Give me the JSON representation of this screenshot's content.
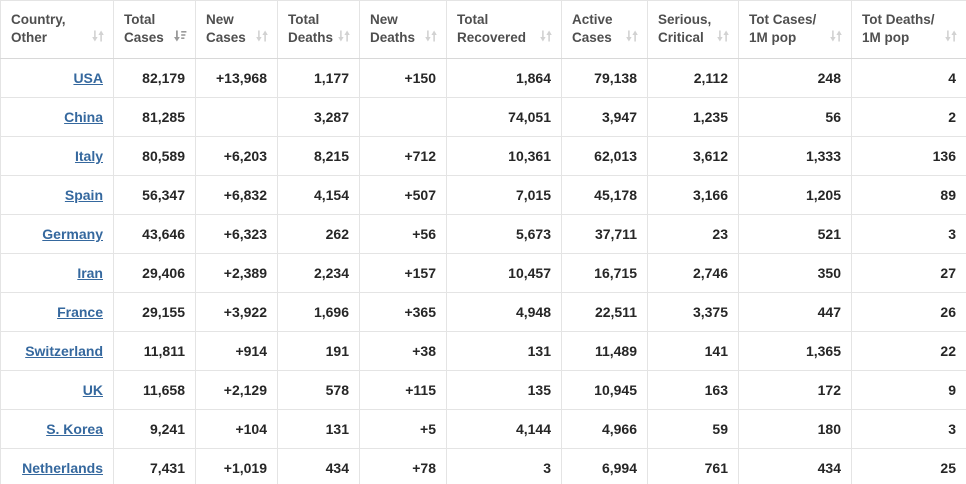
{
  "table": {
    "columns": [
      {
        "key": "country",
        "label": "Country,\nOther",
        "sort": "none"
      },
      {
        "key": "total_cases",
        "label": "Total\nCases",
        "sort": "desc"
      },
      {
        "key": "new_cases",
        "label": "New\nCases",
        "sort": "none"
      },
      {
        "key": "total_deaths",
        "label": "Total\nDeaths",
        "sort": "none"
      },
      {
        "key": "new_deaths",
        "label": "New\nDeaths",
        "sort": "none"
      },
      {
        "key": "total_recovered",
        "label": "Total\nRecovered",
        "sort": "none"
      },
      {
        "key": "active_cases",
        "label": "Active\nCases",
        "sort": "none"
      },
      {
        "key": "serious_critical",
        "label": "Serious,\nCritical",
        "sort": "none"
      },
      {
        "key": "cases_per_1m",
        "label": "Tot Cases/\n1M pop",
        "sort": "none"
      },
      {
        "key": "deaths_per_1m",
        "label": "Tot Deaths/\n1M pop",
        "sort": "none"
      }
    ],
    "rows": [
      {
        "country": "USA",
        "total_cases": "82,179",
        "new_cases": "+13,968",
        "total_deaths": "1,177",
        "new_deaths": "+150",
        "total_recovered": "1,864",
        "active_cases": "79,138",
        "serious_critical": "2,112",
        "cases_per_1m": "248",
        "deaths_per_1m": "4"
      },
      {
        "country": "China",
        "total_cases": "81,285",
        "new_cases": "",
        "total_deaths": "3,287",
        "new_deaths": "",
        "total_recovered": "74,051",
        "active_cases": "3,947",
        "serious_critical": "1,235",
        "cases_per_1m": "56",
        "deaths_per_1m": "2"
      },
      {
        "country": "Italy",
        "total_cases": "80,589",
        "new_cases": "+6,203",
        "total_deaths": "8,215",
        "new_deaths": "+712",
        "total_recovered": "10,361",
        "active_cases": "62,013",
        "serious_critical": "3,612",
        "cases_per_1m": "1,333",
        "deaths_per_1m": "136"
      },
      {
        "country": "Spain",
        "total_cases": "56,347",
        "new_cases": "+6,832",
        "total_deaths": "4,154",
        "new_deaths": "+507",
        "total_recovered": "7,015",
        "active_cases": "45,178",
        "serious_critical": "3,166",
        "cases_per_1m": "1,205",
        "deaths_per_1m": "89"
      },
      {
        "country": "Germany",
        "total_cases": "43,646",
        "new_cases": "+6,323",
        "total_deaths": "262",
        "new_deaths": "+56",
        "total_recovered": "5,673",
        "active_cases": "37,711",
        "serious_critical": "23",
        "cases_per_1m": "521",
        "deaths_per_1m": "3"
      },
      {
        "country": "Iran",
        "total_cases": "29,406",
        "new_cases": "+2,389",
        "total_deaths": "2,234",
        "new_deaths": "+157",
        "total_recovered": "10,457",
        "active_cases": "16,715",
        "serious_critical": "2,746",
        "cases_per_1m": "350",
        "deaths_per_1m": "27"
      },
      {
        "country": "France",
        "total_cases": "29,155",
        "new_cases": "+3,922",
        "total_deaths": "1,696",
        "new_deaths": "+365",
        "total_recovered": "4,948",
        "active_cases": "22,511",
        "serious_critical": "3,375",
        "cases_per_1m": "447",
        "deaths_per_1m": "26"
      },
      {
        "country": "Switzerland",
        "total_cases": "11,811",
        "new_cases": "+914",
        "total_deaths": "191",
        "new_deaths": "+38",
        "total_recovered": "131",
        "active_cases": "11,489",
        "serious_critical": "141",
        "cases_per_1m": "1,365",
        "deaths_per_1m": "22"
      },
      {
        "country": "UK",
        "total_cases": "11,658",
        "new_cases": "+2,129",
        "total_deaths": "578",
        "new_deaths": "+115",
        "total_recovered": "135",
        "active_cases": "10,945",
        "serious_critical": "163",
        "cases_per_1m": "172",
        "deaths_per_1m": "9"
      },
      {
        "country": "S. Korea",
        "total_cases": "9,241",
        "new_cases": "+104",
        "total_deaths": "131",
        "new_deaths": "+5",
        "total_recovered": "4,144",
        "active_cases": "4,966",
        "serious_critical": "59",
        "cases_per_1m": "180",
        "deaths_per_1m": "3"
      },
      {
        "country": "Netherlands",
        "total_cases": "7,431",
        "new_cases": "+1,019",
        "total_deaths": "434",
        "new_deaths": "+78",
        "total_recovered": "3",
        "active_cases": "6,994",
        "serious_critical": "761",
        "cases_per_1m": "434",
        "deaths_per_1m": "25"
      }
    ]
  },
  "colors": {
    "new_cases_bg": "#f9e7a6",
    "new_deaths_bg": "#ed0c0c",
    "link": "#35689e",
    "header_text": "#4f4f4f",
    "cell_text": "#262626"
  }
}
